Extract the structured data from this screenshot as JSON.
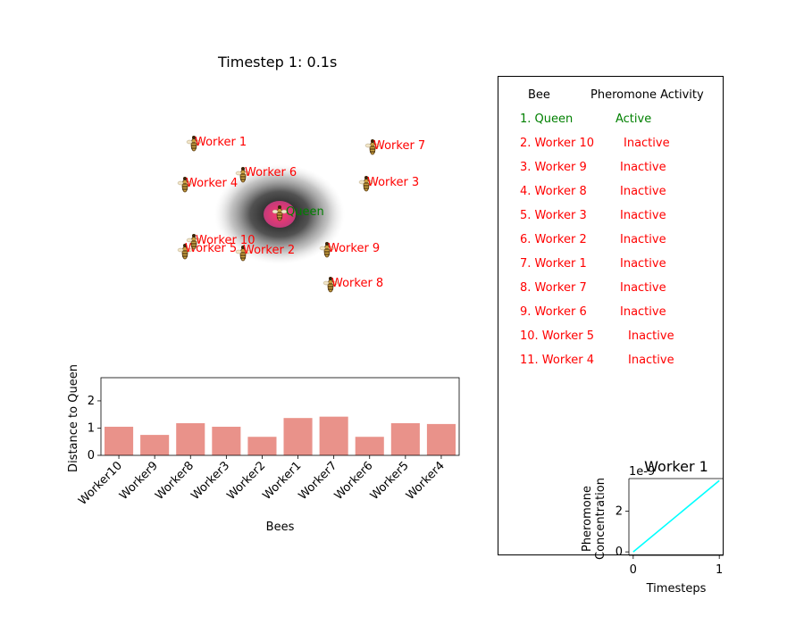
{
  "simulation_title": "Timestep 1: 0.1s",
  "colors": {
    "queen": "#008000",
    "worker": "#ff0000",
    "bar": "#e9928a",
    "pheromone_line": "#00ffff"
  },
  "hive_labels": {
    "queen": "Queen",
    "workers": [
      "Worker 1",
      "Worker 2",
      "Worker 3",
      "Worker 4",
      "Worker 5",
      "Worker 6",
      "Worker 7",
      "Worker 8",
      "Worker 9",
      "Worker 10"
    ]
  },
  "table": {
    "header_bee": "Bee",
    "header_activity": "Pheromone Activity",
    "rows": [
      {
        "bee": "1. Queen",
        "status": "Active",
        "color": "#008000"
      },
      {
        "bee": "2. Worker 10",
        "status": "Inactive",
        "color": "#ff0000"
      },
      {
        "bee": "3. Worker 9",
        "status": "Inactive",
        "color": "#ff0000"
      },
      {
        "bee": "4. Worker 8",
        "status": "Inactive",
        "color": "#ff0000"
      },
      {
        "bee": "5. Worker 3",
        "status": "Inactive",
        "color": "#ff0000"
      },
      {
        "bee": "6. Worker 2",
        "status": "Inactive",
        "color": "#ff0000"
      },
      {
        "bee": "7. Worker 1",
        "status": "Inactive",
        "color": "#ff0000"
      },
      {
        "bee": "8. Worker 7",
        "status": "Inactive",
        "color": "#ff0000"
      },
      {
        "bee": "9. Worker 6",
        "status": "Inactive",
        "color": "#ff0000"
      },
      {
        "bee": "10. Worker 5",
        "status": "Inactive",
        "color": "#ff0000"
      },
      {
        "bee": "11. Worker 4",
        "status": "Inactive",
        "color": "#ff0000"
      }
    ]
  },
  "chart_data": [
    {
      "type": "bar",
      "title": "",
      "xlabel": "Bees",
      "ylabel": "Distance to Queen",
      "categories": [
        "Worker10",
        "Worker9",
        "Worker8",
        "Worker3",
        "Worker2",
        "Worker1",
        "Worker7",
        "Worker6",
        "Worker5",
        "Worker4"
      ],
      "values": [
        1.05,
        0.75,
        1.18,
        1.05,
        0.68,
        1.37,
        1.42,
        0.68,
        1.18,
        1.15
      ],
      "ylim": [
        0,
        2.85
      ],
      "yticks": [
        "0",
        "1",
        "2"
      ],
      "grid": false
    },
    {
      "type": "line",
      "title": "Worker 1",
      "xlabel": "Timesteps",
      "ylabel": "Pheromone\nConcentration",
      "offset_label": "1e-9",
      "x": [
        0,
        1
      ],
      "y": [
        0,
        3.5
      ],
      "xlim": [
        -0.05,
        1.05
      ],
      "ylim": [
        -0.17,
        3.6
      ],
      "xticks": [
        "0",
        "1"
      ],
      "yticks": [
        "0",
        "2"
      ],
      "grid": false
    }
  ]
}
